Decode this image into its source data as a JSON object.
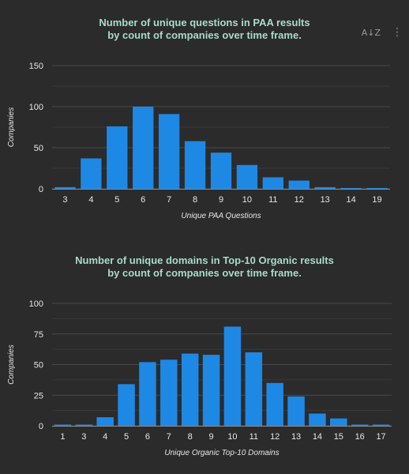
{
  "chart_data": [
    {
      "type": "bar",
      "title_lines": [
        "Number of unique questions in PAA results",
        "by count of companies over time frame."
      ],
      "xlabel": "Unique PAA Questions",
      "ylabel": "Companies",
      "categories": [
        "3",
        "4",
        "5",
        "6",
        "7",
        "8",
        "9",
        "10",
        "11",
        "12",
        "13",
        "14",
        "19"
      ],
      "values": [
        2,
        37,
        76,
        100,
        91,
        58,
        44,
        29,
        14,
        10,
        2,
        1,
        1
      ],
      "ylim": [
        0,
        150
      ],
      "yticks": [
        0,
        50,
        100,
        150
      ],
      "bar_color": "#1e88e5",
      "grid": true
    },
    {
      "type": "bar",
      "title_lines": [
        "Number of unique domains in Top-10 Organic results",
        "by count of companies over time frame."
      ],
      "xlabel": "Unique Organic Top-10 Domains",
      "ylabel": "Companies",
      "categories": [
        "1",
        "3",
        "4",
        "5",
        "6",
        "7",
        "8",
        "9",
        "10",
        "11",
        "12",
        "13",
        "14",
        "15",
        "16",
        "17"
      ],
      "values": [
        1,
        1,
        7,
        34,
        52,
        54,
        59,
        58,
        81,
        60,
        35,
        24,
        10,
        6,
        1,
        1
      ],
      "ylim": [
        0,
        100
      ],
      "yticks": [
        0,
        25,
        50,
        75,
        100
      ],
      "bar_color": "#1e88e5",
      "grid": true
    }
  ],
  "toolbar": {
    "sort_icon": "sort-az-icon",
    "sort_glyph": "A↓Z",
    "menu_icon": "more-vert-icon",
    "menu_glyph": "⋮"
  },
  "colors": {
    "background": "#2b2b2b",
    "title": "#a7dcc8",
    "bar": "#1e88e5",
    "grid": "#4a4a4a",
    "text": "#e6e6e6"
  }
}
